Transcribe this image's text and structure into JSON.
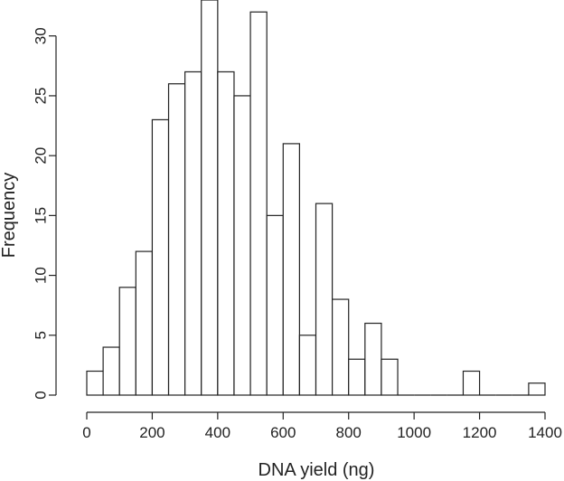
{
  "chart_data": {
    "type": "bar",
    "title": "",
    "xlabel": "DNA yield (ng)",
    "ylabel": "Frequency",
    "bin_width": 50,
    "bins": [
      {
        "start": 0,
        "end": 50,
        "count": 2
      },
      {
        "start": 50,
        "end": 100,
        "count": 4
      },
      {
        "start": 100,
        "end": 150,
        "count": 9
      },
      {
        "start": 150,
        "end": 200,
        "count": 12
      },
      {
        "start": 200,
        "end": 250,
        "count": 23
      },
      {
        "start": 250,
        "end": 300,
        "count": 26
      },
      {
        "start": 300,
        "end": 350,
        "count": 27
      },
      {
        "start": 350,
        "end": 400,
        "count": 33
      },
      {
        "start": 400,
        "end": 450,
        "count": 27
      },
      {
        "start": 450,
        "end": 500,
        "count": 25
      },
      {
        "start": 500,
        "end": 550,
        "count": 32
      },
      {
        "start": 550,
        "end": 600,
        "count": 15
      },
      {
        "start": 600,
        "end": 650,
        "count": 21
      },
      {
        "start": 650,
        "end": 700,
        "count": 5
      },
      {
        "start": 700,
        "end": 750,
        "count": 16
      },
      {
        "start": 750,
        "end": 800,
        "count": 8
      },
      {
        "start": 800,
        "end": 850,
        "count": 3
      },
      {
        "start": 850,
        "end": 900,
        "count": 6
      },
      {
        "start": 900,
        "end": 950,
        "count": 3
      },
      {
        "start": 950,
        "end": 1000,
        "count": 0
      },
      {
        "start": 1000,
        "end": 1050,
        "count": 0
      },
      {
        "start": 1050,
        "end": 1100,
        "count": 0
      },
      {
        "start": 1100,
        "end": 1150,
        "count": 0
      },
      {
        "start": 1150,
        "end": 1200,
        "count": 2
      },
      {
        "start": 1200,
        "end": 1250,
        "count": 0
      },
      {
        "start": 1250,
        "end": 1300,
        "count": 0
      },
      {
        "start": 1300,
        "end": 1350,
        "count": 0
      },
      {
        "start": 1350,
        "end": 1400,
        "count": 1
      }
    ],
    "x_ticks": [
      "0",
      "200",
      "400",
      "600",
      "800",
      "1000",
      "1200",
      "1400"
    ],
    "y_ticks": [
      "0",
      "5",
      "10",
      "15",
      "20",
      "25",
      "30"
    ],
    "xlim": [
      0,
      1400
    ],
    "ylim": [
      0,
      33
    ],
    "grid": false,
    "legend": "none",
    "colors": {
      "bar_fill": "#ffffff",
      "bar_stroke": "#222222",
      "axis": "#222222"
    }
  }
}
